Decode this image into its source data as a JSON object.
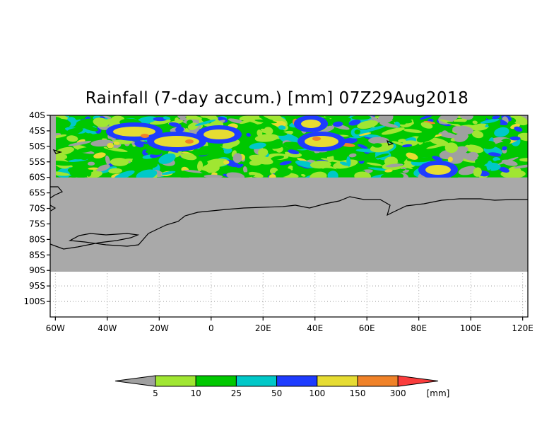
{
  "title": "Rainfall (7-day accum.) [mm] 07Z29Aug2018",
  "map": {
    "lat_labels": [
      "40S",
      "45S",
      "50S",
      "55S",
      "60S",
      "65S",
      "70S",
      "75S",
      "80S",
      "85S",
      "90S",
      "95S",
      "100S"
    ],
    "lon_labels": [
      "60W",
      "40W",
      "20W",
      "0",
      "20E",
      "40E",
      "60E",
      "80E",
      "100E",
      "120E"
    ],
    "lat_range": [
      -105,
      -40
    ],
    "lon_range": [
      -62,
      122
    ],
    "data_extent_lat": [
      -90,
      -40
    ],
    "rain_data_lat": [
      -60,
      -40
    ],
    "land_color": "#a9a9a9",
    "grid": "dotted"
  },
  "colorbar": {
    "levels": [
      "5",
      "10",
      "25",
      "50",
      "100",
      "150",
      "300"
    ],
    "unit": "[mm]",
    "colors": [
      "#a0a0a0",
      "#a0e632",
      "#00c800",
      "#00c8c8",
      "#1e3cff",
      "#e6dc32",
      "#f08228",
      "#fa3c3c"
    ]
  }
}
